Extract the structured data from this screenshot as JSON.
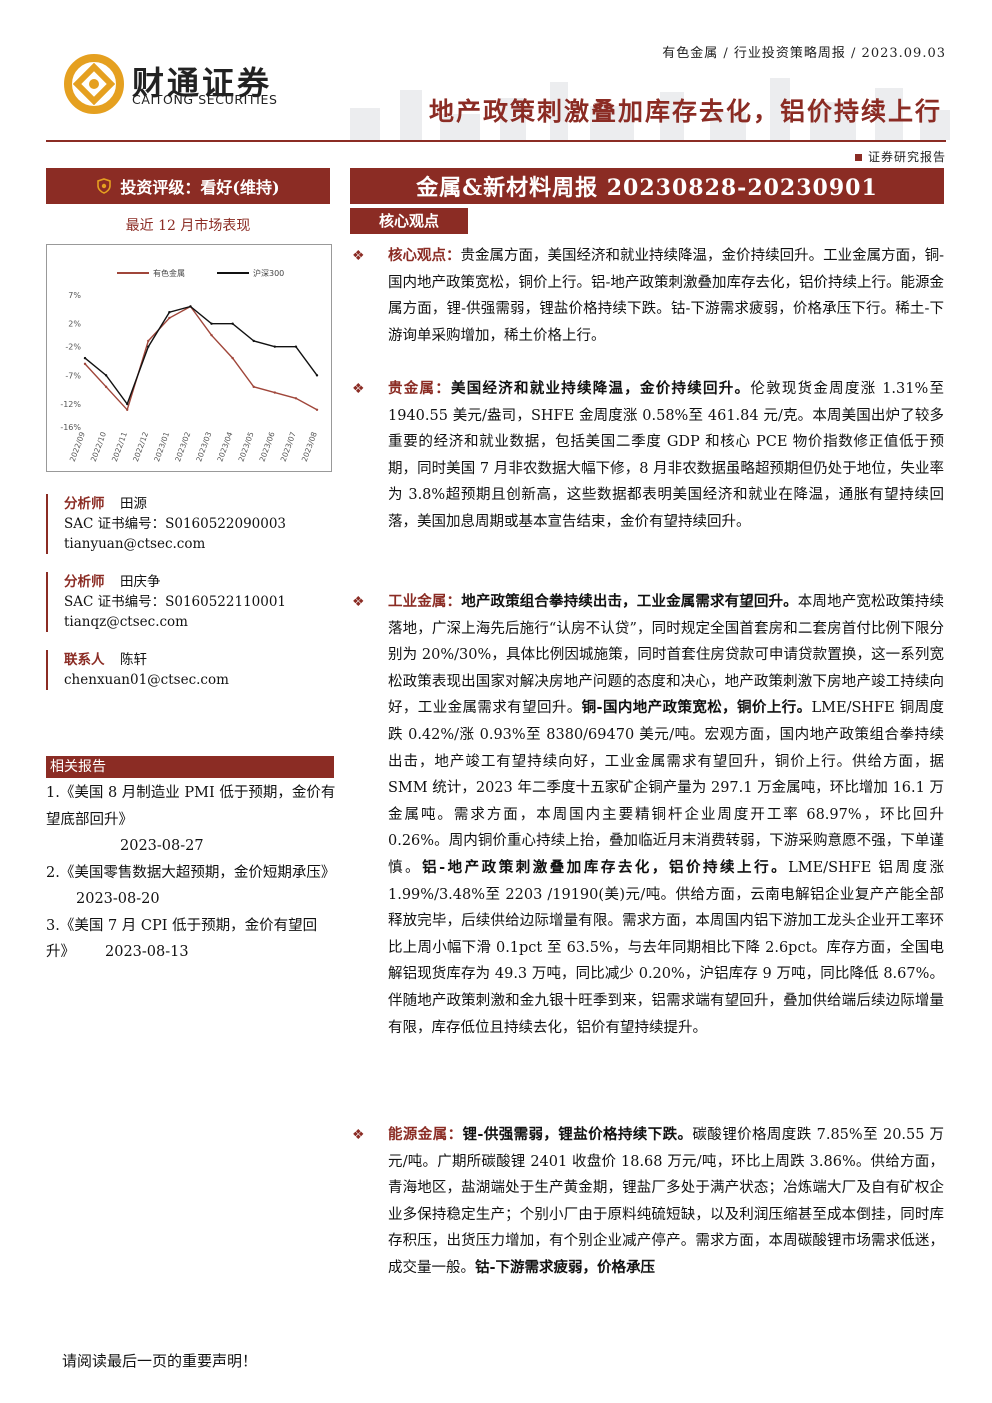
{
  "header": {
    "crumb": "有色金属 / 行业投资策略周报 / 2023.09.03",
    "headline": "地产政策刺激叠加库存去化，铝价持续上行",
    "doc_type": "证券研究报告"
  },
  "logo": {
    "name_cn": "财通证券",
    "name_en": "CAITONG SECURITIES"
  },
  "rating": {
    "text": "投资评级：看好(维持)"
  },
  "market": {
    "caption": "最近 12 月市场表现",
    "chart_data": {
      "type": "line",
      "x": [
        "2022/09",
        "2022/10",
        "2022/11",
        "2022/12",
        "2023/01",
        "2023/02",
        "2023/03",
        "2023/04",
        "2023/05",
        "2023/06",
        "2023/07",
        "2023/08"
      ],
      "series": [
        {
          "name": "有色金属",
          "color": "#a0463a",
          "values": [
            -5,
            -9,
            -13,
            -1,
            3,
            5,
            0,
            -4,
            -9,
            -10,
            -11,
            -13
          ]
        },
        {
          "name": "沪深300",
          "color": "#111111",
          "values": [
            -4,
            -7,
            -12,
            -2,
            4,
            5,
            2,
            2,
            -1,
            -2,
            -2,
            -7
          ]
        }
      ],
      "y_ticks": [
        "7%",
        "2%",
        "-2%",
        "-7%",
        "-12%",
        "-16%"
      ],
      "ylim": [
        -16,
        7
      ]
    }
  },
  "analysts": [
    {
      "role": "分析师",
      "name": "田源",
      "sac": "SAC 证书编号：S0160522090003",
      "email": "tianyuan@ctsec.com"
    },
    {
      "role": "分析师",
      "name": "田庆争",
      "sac": "SAC 证书编号：S0160522110001",
      "email": "tianqz@ctsec.com"
    },
    {
      "role": "联系人",
      "name": "陈轩",
      "sac": "",
      "email": "chenxuan01@ctsec.com"
    }
  ],
  "related": {
    "title": "相关报告",
    "items": [
      {
        "no": "1.",
        "title": "《美国 8 月制造业 PMI 低于预期，金价有望底部回升》",
        "date": "2023-08-27"
      },
      {
        "no": "2.",
        "title": "《美国零售数据大超预期，金价短期承压》",
        "date": "2023-08-20"
      },
      {
        "no": "3.",
        "title": "《美国 7 月 CPI 低于预期，金价有望回升》",
        "date": "2023-08-13"
      }
    ]
  },
  "report": {
    "title": "金属&新材料周报 20230828-20230901",
    "core_tab": "核心观点",
    "bullet_glyph": "❖",
    "p1": {
      "lead": "核心观点：",
      "text": "贵金属方面，美国经济和就业持续降温，金价持续回升。工业金属方面，铜-国内地产政策宽松，铜价上行。铝-地产政策刺激叠加库存去化，铝价持续上行。能源金属方面，锂-供强需弱，锂盐价格持续下跌。钴-下游需求疲弱，价格承压下行。稀土-下游询单采购增加，稀土价格上行。"
    },
    "p2": {
      "lead": "贵金属：",
      "bold": "美国经济和就业持续降温，金价持续回升。",
      "text": "伦敦现货金周度涨 1.31%至 1940.55 美元/盎司，SHFE 金周度涨 0.58%至 461.84 元/克。本周美国出炉了较多重要的经济和就业数据，包括美国二季度 GDP 和核心 PCE 物价指数修正值低于预期，同时美国 7 月非农数据大幅下修，8 月非农数据虽略超预期但仍处于地位，失业率为 3.8%超预期且创新高，这些数据都表明美国经济和就业在降温，通胀有望持续回落，美国加息周期或基本宣告结束，金价有望持续回升。"
    },
    "p3": {
      "lead": "工业金属：",
      "bold1": "地产政策组合拳持续出击，工业金属需求有望回升。",
      "text1": "本周地产宽松政策持续落地，广深上海先后施行“认房不认贷”，同时规定全国首套房和二套房首付比例下限分别为 20%/30%，具体比例因城施策，同时首套住房贷款可申请贷款置换，这一系列宽松政策表现出国家对解决房地产问题的态度和决心，地产政策刺激下房地产竣工持续向好，工业金属需求有望回升。",
      "bold2": "铜-国内地产政策宽松，铜价上行。",
      "text2": "LME/SHFE 铜周度跌 0.42%/涨 0.93%至 8380/69470 美元/吨。宏观方面，国内地产政策组合拳持续出击，地产竣工有望持续向好，工业金属需求有望回升，铜价上行。供给方面，据 SMM 统计，2023 年二季度十五家矿企铜产量为 297.1 万金属吨，环比增加 16.1 万金属吨。需求方面，本周国内主要精铜杆企业周度开工率 68.97%，环比回升 0.26%。周内铜价重心持续上抬，叠加临近月末消费转弱，下游采购意愿不强，下单谨慎。",
      "bold3": "铝-地产政策刺激叠加库存去化，铝价持续上行。",
      "text3": "LME/SHFE 铝周度涨 1.99%/3.48%至 2203 /19190(美)元/吨。供给方面，云南电解铝企业复产产能全部释放完毕，后续供给边际增量有限。需求方面，本周国内铝下游加工龙头企业开工率环比上周小幅下滑 0.1pct 至 63.5%，与去年同期相比下降 2.6pct。库存方面，全国电解铝现货库存为 49.3 万吨，同比减少 0.20%，沪铝库存 9 万吨，同比降低 8.67%。伴随地产政策刺激和金九银十旺季到来，铝需求端有望回升，叠加供给端后续边际增量有限，库存低位且持续去化，铝价有望持续提升。"
    },
    "p4": {
      "lead": "能源金属：",
      "bold1": "锂-供强需弱，锂盐价格持续下跌。",
      "text1": "碳酸锂价格周度跌 7.85%至 20.55 万元/吨。广期所碳酸锂 2401 收盘价 18.68 万元/吨，环比上周跌 3.86%。供给方面，青海地区，盐湖端处于生产黄金期，锂盐厂多处于满产状态；冶炼端大厂及自有矿权企业多保持稳定生产；个别小厂由于原料纯硫短缺，以及利润压缩甚至成本倒挂，同时库存积压，出货压力增加，有个别企业减产停产。需求方面，本周碳酸锂市场需求低迷，成交量一般。",
      "bold2": "钴-下游需求疲弱，价格承压"
    }
  },
  "footer": {
    "text": "请阅读最后一页的重要声明！"
  }
}
